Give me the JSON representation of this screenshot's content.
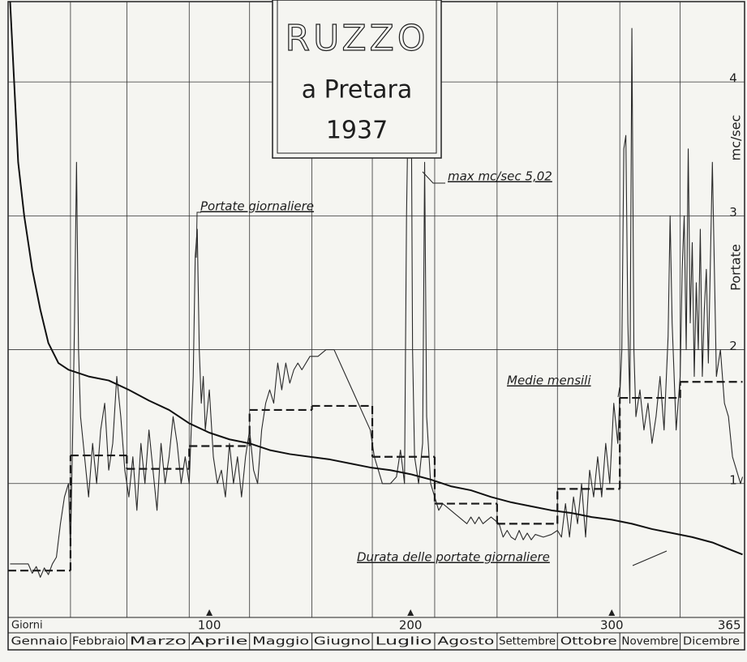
{
  "chart_data": {
    "type": "line",
    "title": "RUZZO",
    "subtitle": "a Pretara",
    "year": "1937",
    "x_label": "Giorni",
    "y_label": "Portate",
    "y_unit": "mc/sec",
    "annotation": "max mc/sec 5,02",
    "categories": [
      "Gennaio",
      "Febbraio",
      "Marzo",
      "Aprile",
      "Maggio",
      "Giugno",
      "Luglio",
      "Agosto",
      "Settembre",
      "Ottobre",
      "Novembre",
      "Dicembre"
    ],
    "xgrid": [
      0,
      31,
      59,
      90,
      120,
      151,
      181,
      212,
      243,
      273,
      304,
      334,
      365
    ],
    "xlim": [
      0,
      366
    ],
    "xticks": [
      100,
      200,
      300,
      365
    ],
    "ylim": [
      0,
      4.6
    ],
    "yticks": [
      1,
      2,
      3,
      4
    ],
    "grid": true,
    "series": [
      {
        "name": "Portate giornaliere",
        "color": "#2a2a2a",
        "style": "thin",
        "x": [
          1,
          10,
          12,
          14,
          16,
          18,
          20,
          22,
          24,
          26,
          28,
          30,
          31,
          32,
          33,
          34,
          35,
          36,
          38,
          40,
          42,
          44,
          46,
          48,
          50,
          52,
          54,
          56,
          58,
          60,
          62,
          64,
          66,
          68,
          70,
          72,
          74,
          76,
          78,
          80,
          82,
          84,
          86,
          88,
          90,
          92,
          93,
          94,
          95,
          96,
          97,
          98,
          100,
          102,
          104,
          106,
          108,
          110,
          112,
          114,
          116,
          118,
          120,
          122,
          124,
          126,
          128,
          130,
          132,
          134,
          136,
          138,
          140,
          142,
          144,
          146,
          150,
          154,
          158,
          162,
          165,
          168,
          171,
          174,
          177,
          180,
          182,
          184,
          186,
          190,
          193,
          195,
          197,
          198,
          199,
          200,
          201,
          202,
          204,
          206,
          207,
          208,
          210,
          212,
          214,
          216,
          220,
          224,
          228,
          230,
          232,
          234,
          236,
          240,
          244,
          246,
          248,
          250,
          252,
          254,
          256,
          258,
          260,
          262,
          266,
          270,
          273,
          275,
          277,
          279,
          281,
          283,
          285,
          287,
          289,
          291,
          293,
          295,
          297,
          299,
          301,
          303,
          305,
          306,
          307,
          308,
          309,
          310,
          311,
          312,
          314,
          316,
          318,
          320,
          322,
          324,
          326,
          328,
          329,
          330,
          332,
          334,
          335,
          336,
          337,
          338,
          339,
          340,
          341,
          342,
          343,
          344,
          345,
          346,
          347,
          348,
          350,
          351,
          352,
          354,
          356,
          358,
          360,
          362,
          364,
          365
        ],
        "values": [
          0.4,
          0.4,
          0.33,
          0.38,
          0.3,
          0.37,
          0.32,
          0.4,
          0.45,
          0.7,
          0.9,
          1.0,
          0.5,
          1.3,
          2.2,
          3.4,
          2.0,
          1.5,
          1.2,
          0.9,
          1.3,
          1.0,
          1.4,
          1.6,
          1.1,
          1.3,
          1.8,
          1.5,
          1.1,
          0.9,
          1.2,
          0.8,
          1.3,
          1.0,
          1.4,
          1.1,
          0.8,
          1.3,
          1.0,
          1.2,
          1.5,
          1.3,
          1.0,
          1.2,
          1.0,
          1.8,
          2.7,
          2.9,
          2.0,
          1.6,
          1.8,
          1.4,
          1.7,
          1.2,
          1.0,
          1.1,
          0.9,
          1.3,
          1.0,
          1.2,
          0.9,
          1.2,
          1.4,
          1.1,
          1.0,
          1.4,
          1.6,
          1.7,
          1.6,
          1.9,
          1.7,
          1.9,
          1.75,
          1.85,
          1.9,
          1.85,
          1.95,
          1.95,
          2.0,
          2.0,
          1.9,
          1.8,
          1.7,
          1.6,
          1.5,
          1.4,
          1.2,
          1.1,
          1.0,
          1.0,
          1.05,
          1.25,
          1.0,
          3.0,
          4.0,
          5.02,
          2.0,
          1.2,
          1.0,
          1.3,
          3.4,
          1.5,
          1.0,
          0.9,
          0.8,
          0.85,
          0.8,
          0.75,
          0.7,
          0.75,
          0.7,
          0.75,
          0.7,
          0.75,
          0.7,
          0.6,
          0.65,
          0.6,
          0.58,
          0.65,
          0.58,
          0.63,
          0.58,
          0.62,
          0.6,
          0.62,
          0.65,
          0.6,
          0.85,
          0.6,
          0.9,
          0.7,
          1.0,
          0.6,
          1.1,
          0.9,
          1.2,
          0.9,
          1.3,
          1.0,
          1.6,
          1.3,
          2.0,
          3.5,
          3.6,
          2.2,
          1.6,
          4.4,
          2.0,
          1.5,
          1.7,
          1.4,
          1.6,
          1.3,
          1.5,
          1.8,
          1.4,
          2.1,
          3.0,
          2.2,
          1.4,
          1.8,
          2.6,
          3.0,
          2.0,
          3.5,
          2.2,
          2.8,
          1.8,
          2.5,
          2.0,
          2.9,
          1.8,
          2.3,
          2.6,
          1.9,
          3.4,
          2.6,
          1.8,
          2.0,
          1.6,
          1.5,
          1.2,
          1.1,
          1.0,
          1.05
        ]
      },
      {
        "name": "Medie mensili",
        "color": "#1a1a1a",
        "style": "dashed",
        "values": [
          0.35,
          1.21,
          1.11,
          1.28,
          1.55,
          1.58,
          1.2,
          0.85,
          0.7,
          0.96,
          1.64,
          1.76
        ]
      },
      {
        "name": "Durata delle portate giornaliere",
        "color": "#111111",
        "style": "thick",
        "x": [
          1,
          3,
          5,
          8,
          12,
          16,
          20,
          25,
          30,
          40,
          50,
          60,
          70,
          80,
          90,
          100,
          110,
          120,
          130,
          140,
          150,
          160,
          170,
          180,
          190,
          200,
          210,
          220,
          230,
          240,
          250,
          260,
          270,
          280,
          290,
          300,
          310,
          320,
          330,
          340,
          350,
          360,
          365
        ],
        "values": [
          4.6,
          4.0,
          3.4,
          3.0,
          2.6,
          2.3,
          2.05,
          1.9,
          1.85,
          1.8,
          1.77,
          1.7,
          1.62,
          1.55,
          1.45,
          1.38,
          1.33,
          1.3,
          1.25,
          1.22,
          1.2,
          1.18,
          1.15,
          1.12,
          1.1,
          1.07,
          1.03,
          0.98,
          0.95,
          0.9,
          0.86,
          0.83,
          0.8,
          0.78,
          0.75,
          0.73,
          0.7,
          0.66,
          0.63,
          0.6,
          0.56,
          0.5,
          0.47
        ]
      }
    ]
  }
}
